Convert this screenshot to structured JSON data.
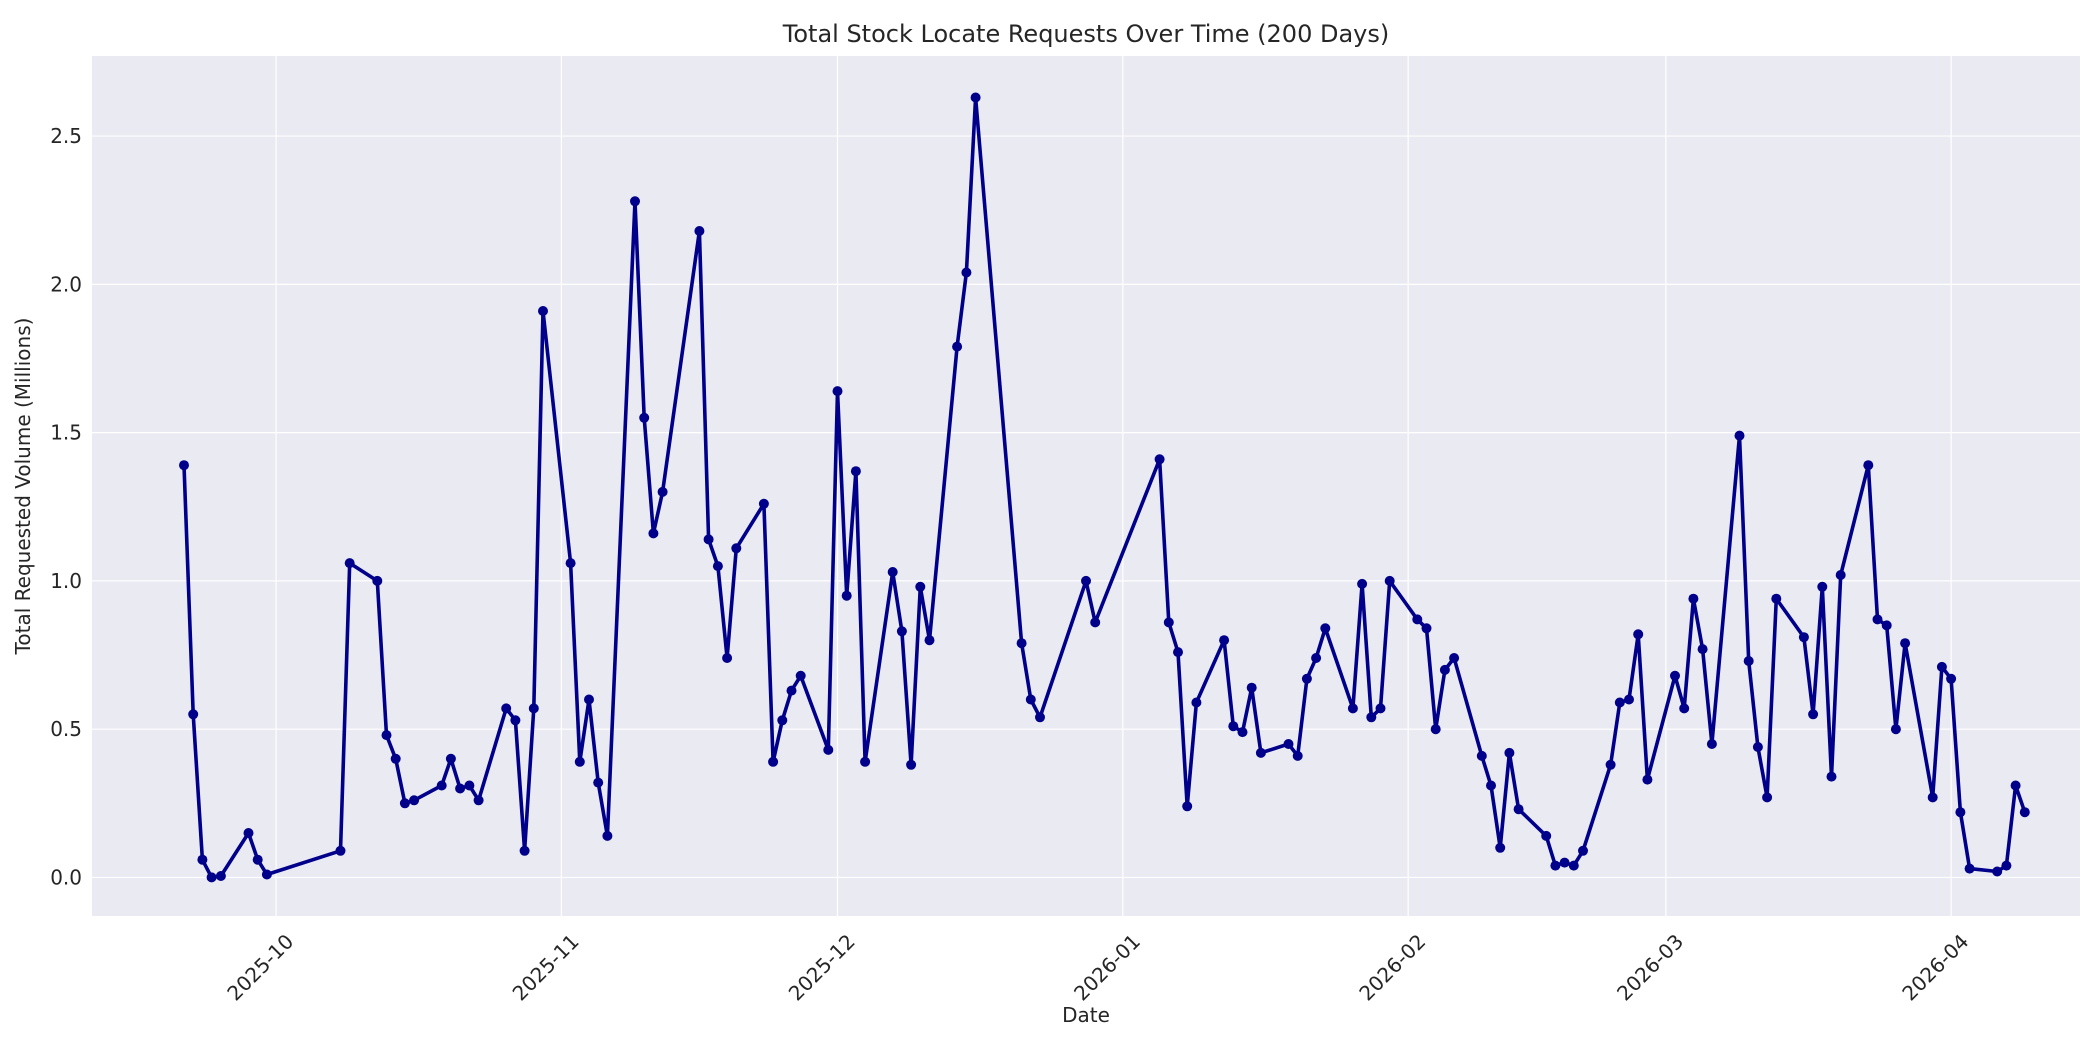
{
  "chart_data": {
    "type": "line",
    "title": "Total Stock Locate Requests Over Time (200 Days)",
    "xlabel": "Date",
    "ylabel": "Total Requested Volume (Millions)",
    "xlim": [
      "2025-09-11",
      "2026-04-15"
    ],
    "ylim": [
      -0.13,
      2.77
    ],
    "x_ticks": [
      {
        "date": "2025-10-01",
        "label": "2025-10"
      },
      {
        "date": "2025-11-01",
        "label": "2025-11"
      },
      {
        "date": "2025-12-01",
        "label": "2025-12"
      },
      {
        "date": "2026-01-01",
        "label": "2026-01"
      },
      {
        "date": "2026-02-01",
        "label": "2026-02"
      },
      {
        "date": "2026-03-01",
        "label": "2026-03"
      },
      {
        "date": "2026-04-01",
        "label": "2026-04"
      }
    ],
    "y_ticks": [
      {
        "value": 0.0,
        "label": "0.0"
      },
      {
        "value": 0.5,
        "label": "0.5"
      },
      {
        "value": 1.0,
        "label": "1.0"
      },
      {
        "value": 1.5,
        "label": "1.5"
      },
      {
        "value": 2.0,
        "label": "2.0"
      },
      {
        "value": 2.5,
        "label": "2.5"
      }
    ],
    "grid": true,
    "colors": {
      "line": "#00008b",
      "plot_bg": "#eaeaf2",
      "grid": "#ffffff"
    },
    "series": [
      {
        "points": [
          [
            "2025-09-21",
            1.39
          ],
          [
            "2025-09-22",
            0.55
          ],
          [
            "2025-09-23",
            0.06
          ],
          [
            "2025-09-24",
            0.0
          ],
          [
            "2025-09-25",
            0.005
          ],
          [
            "2025-09-28",
            0.15
          ],
          [
            "2025-09-29",
            0.06
          ],
          [
            "2025-09-30",
            0.01
          ],
          [
            "2025-10-08",
            0.09
          ],
          [
            "2025-10-09",
            1.06
          ],
          [
            "2025-10-12",
            1.0
          ],
          [
            "2025-10-13",
            0.48
          ],
          [
            "2025-10-14",
            0.4
          ],
          [
            "2025-10-15",
            0.25
          ],
          [
            "2025-10-16",
            0.26
          ],
          [
            "2025-10-19",
            0.31
          ],
          [
            "2025-10-20",
            0.4
          ],
          [
            "2025-10-21",
            0.3
          ],
          [
            "2025-10-22",
            0.31
          ],
          [
            "2025-10-23",
            0.26
          ],
          [
            "2025-10-26",
            0.57
          ],
          [
            "2025-10-27",
            0.53
          ],
          [
            "2025-10-28",
            0.09
          ],
          [
            "2025-10-29",
            0.57
          ],
          [
            "2025-10-30",
            1.91
          ],
          [
            "2025-11-02",
            1.06
          ],
          [
            "2025-11-03",
            0.39
          ],
          [
            "2025-11-04",
            0.6
          ],
          [
            "2025-11-05",
            0.32
          ],
          [
            "2025-11-06",
            0.14
          ],
          [
            "2025-11-09",
            2.28
          ],
          [
            "2025-11-10",
            1.55
          ],
          [
            "2025-11-11",
            1.16
          ],
          [
            "2025-11-12",
            1.3
          ],
          [
            "2025-11-16",
            2.18
          ],
          [
            "2025-11-17",
            1.14
          ],
          [
            "2025-11-18",
            1.05
          ],
          [
            "2025-11-19",
            0.74
          ],
          [
            "2025-11-20",
            1.11
          ],
          [
            "2025-11-23",
            1.26
          ],
          [
            "2025-11-24",
            0.39
          ],
          [
            "2025-11-25",
            0.53
          ],
          [
            "2025-11-26",
            0.63
          ],
          [
            "2025-11-27",
            0.68
          ],
          [
            "2025-11-30",
            0.43
          ],
          [
            "2025-12-01",
            1.64
          ],
          [
            "2025-12-02",
            0.95
          ],
          [
            "2025-12-03",
            1.37
          ],
          [
            "2025-12-04",
            0.39
          ],
          [
            "2025-12-07",
            1.03
          ],
          [
            "2025-12-08",
            0.83
          ],
          [
            "2025-12-09",
            0.38
          ],
          [
            "2025-12-10",
            0.98
          ],
          [
            "2025-12-11",
            0.8
          ],
          [
            "2025-12-14",
            1.79
          ],
          [
            "2025-12-15",
            2.04
          ],
          [
            "2025-12-16",
            2.63
          ],
          [
            "2025-12-21",
            0.79
          ],
          [
            "2025-12-22",
            0.6
          ],
          [
            "2025-12-23",
            0.54
          ],
          [
            "2025-12-28",
            1.0
          ],
          [
            "2025-12-29",
            0.86
          ],
          [
            "2026-01-05",
            1.41
          ],
          [
            "2026-01-06",
            0.86
          ],
          [
            "2026-01-07",
            0.76
          ],
          [
            "2026-01-08",
            0.24
          ],
          [
            "2026-01-09",
            0.59
          ],
          [
            "2026-01-12",
            0.8
          ],
          [
            "2026-01-13",
            0.51
          ],
          [
            "2026-01-14",
            0.49
          ],
          [
            "2026-01-15",
            0.64
          ],
          [
            "2026-01-16",
            0.42
          ],
          [
            "2026-01-19",
            0.45
          ],
          [
            "2026-01-20",
            0.41
          ],
          [
            "2026-01-21",
            0.67
          ],
          [
            "2026-01-22",
            0.74
          ],
          [
            "2026-01-23",
            0.84
          ],
          [
            "2026-01-26",
            0.57
          ],
          [
            "2026-01-27",
            0.99
          ],
          [
            "2026-01-28",
            0.54
          ],
          [
            "2026-01-29",
            0.57
          ],
          [
            "2026-01-30",
            1.0
          ],
          [
            "2026-02-02",
            0.87
          ],
          [
            "2026-02-03",
            0.84
          ],
          [
            "2026-02-04",
            0.5
          ],
          [
            "2026-02-05",
            0.7
          ],
          [
            "2026-02-06",
            0.74
          ],
          [
            "2026-02-09",
            0.41
          ],
          [
            "2026-02-10",
            0.31
          ],
          [
            "2026-02-11",
            0.1
          ],
          [
            "2026-02-12",
            0.42
          ],
          [
            "2026-02-13",
            0.23
          ],
          [
            "2026-02-16",
            0.14
          ],
          [
            "2026-02-17",
            0.04
          ],
          [
            "2026-02-18",
            0.05
          ],
          [
            "2026-02-19",
            0.04
          ],
          [
            "2026-02-20",
            0.09
          ],
          [
            "2026-02-23",
            0.38
          ],
          [
            "2026-02-24",
            0.59
          ],
          [
            "2026-02-25",
            0.6
          ],
          [
            "2026-02-26",
            0.82
          ],
          [
            "2026-02-27",
            0.33
          ],
          [
            "2026-03-02",
            0.68
          ],
          [
            "2026-03-03",
            0.57
          ],
          [
            "2026-03-04",
            0.94
          ],
          [
            "2026-03-05",
            0.77
          ],
          [
            "2026-03-06",
            0.45
          ],
          [
            "2026-03-09",
            1.49
          ],
          [
            "2026-03-10",
            0.73
          ],
          [
            "2026-03-11",
            0.44
          ],
          [
            "2026-03-12",
            0.27
          ],
          [
            "2026-03-13",
            0.94
          ],
          [
            "2026-03-16",
            0.81
          ],
          [
            "2026-03-17",
            0.55
          ],
          [
            "2026-03-18",
            0.98
          ],
          [
            "2026-03-19",
            0.34
          ],
          [
            "2026-03-20",
            1.02
          ],
          [
            "2026-03-23",
            1.39
          ],
          [
            "2026-03-24",
            0.87
          ],
          [
            "2026-03-25",
            0.85
          ],
          [
            "2026-03-26",
            0.5
          ],
          [
            "2026-03-27",
            0.79
          ],
          [
            "2026-03-30",
            0.27
          ],
          [
            "2026-03-31",
            0.71
          ],
          [
            "2026-04-01",
            0.67
          ],
          [
            "2026-04-02",
            0.22
          ],
          [
            "2026-04-03",
            0.03
          ],
          [
            "2026-04-06",
            0.02
          ],
          [
            "2026-04-07",
            0.04
          ],
          [
            "2026-04-08",
            0.31
          ],
          [
            "2026-04-09",
            0.22
          ]
        ]
      }
    ]
  }
}
